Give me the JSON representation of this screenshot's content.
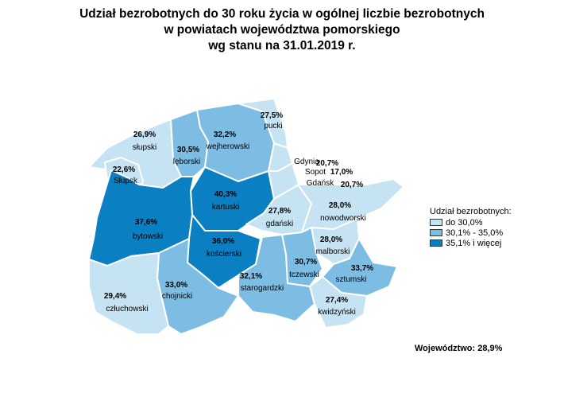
{
  "title": {
    "line1": "Udział bezrobotnych do 30 roku życia w ogólnej liczbie bezrobotnych",
    "line2": "w powiatach województwa pomorskiego",
    "line3": "wg stanu na 31.01.2019 r."
  },
  "colors": {
    "low": "#c6e3f4",
    "mid": "#7dbde4",
    "high": "#0a7fc1",
    "outline": "#ffffff"
  },
  "legend": {
    "title": "Udział bezrobotnych:",
    "items": [
      {
        "label": "do 30,0%",
        "class": "low"
      },
      {
        "label": "30,1% - 35,0%",
        "class": "mid"
      },
      {
        "label": "35,1% i więcej",
        "class": "high"
      }
    ]
  },
  "regions": [
    {
      "id": "pucki",
      "name": "pucki",
      "value": "27,5%",
      "class": "low"
    },
    {
      "id": "slupski",
      "name": "słupski",
      "value": "26,9%",
      "class": "low"
    },
    {
      "id": "wejherowski",
      "name": "wejherowski",
      "value": "32,2%",
      "class": "mid"
    },
    {
      "id": "leborski",
      "name": "lęborski",
      "value": "30,5%",
      "class": "mid"
    },
    {
      "id": "slupsk",
      "name": "Słupsk",
      "value": "22,6%",
      "class": "low"
    },
    {
      "id": "kartuski",
      "name": "kartuski",
      "value": "40,3%",
      "class": "high"
    },
    {
      "id": "bytowski",
      "name": "bytowski",
      "value": "37,6%",
      "class": "high"
    },
    {
      "id": "gdanski",
      "name": "gdański",
      "value": "27,8%",
      "class": "low"
    },
    {
      "id": "nowodworski",
      "name": "nowodworski",
      "value": "28,0%",
      "class": "low"
    },
    {
      "id": "malborski",
      "name": "malborski",
      "value": "28,0%",
      "class": "low"
    },
    {
      "id": "koscierski",
      "name": "kościerski",
      "value": "36,0%",
      "class": "high"
    },
    {
      "id": "tczewski",
      "name": "tczewski",
      "value": "30,7%",
      "class": "mid"
    },
    {
      "id": "sztumski",
      "name": "sztumski",
      "value": "33,7%",
      "class": "mid"
    },
    {
      "id": "starogardzki",
      "name": "starogardzki",
      "value": "32,1%",
      "class": "mid"
    },
    {
      "id": "chojnicki",
      "name": "chojnicki",
      "value": "33,0%",
      "class": "mid"
    },
    {
      "id": "czluchowski",
      "name": "człuchowski",
      "value": "29,4%",
      "class": "low"
    },
    {
      "id": "kwidzynski",
      "name": "kwidzyński",
      "value": "27,4%",
      "class": "low"
    }
  ],
  "cities": [
    {
      "id": "gdynia",
      "name": "Gdynia",
      "value": "20,7%"
    },
    {
      "id": "sopot",
      "name": "Sopot",
      "value": "17,0%"
    },
    {
      "id": "gdansk",
      "name": "Gdańsk",
      "value": "20,7%"
    }
  ],
  "total": {
    "label": "Województwo:",
    "value": "28,9%"
  }
}
